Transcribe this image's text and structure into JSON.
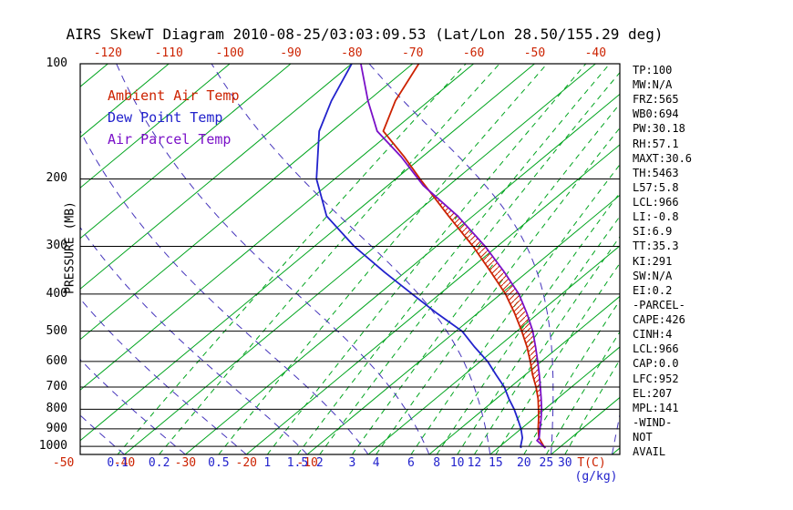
{
  "title": "AIRS SkewT Diagram 2010-08-25/03:03:09.53 (Lat/Lon 28.50/155.29 deg)",
  "legend": {
    "items": [
      {
        "label": "Ambient Air Temp",
        "color": "#cc2200"
      },
      {
        "label": "Dew Point Temp",
        "color": "#2222cc"
      },
      {
        "label": "Air Parcel Temp",
        "color": "#7a10c8"
      }
    ]
  },
  "axes": {
    "pressure_label": "PRESSURE (MB)",
    "pressure_ticks": [
      100,
      200,
      300,
      400,
      500,
      600,
      700,
      800,
      900,
      1000
    ],
    "top_temp_ticks": [
      -120,
      -110,
      -100,
      -90,
      -80,
      -70,
      -60,
      -50,
      -40
    ],
    "bottom_temp_ticks": [
      -50,
      -40,
      -30,
      -20,
      -10
    ],
    "bottom_temp_unit": "T(C)",
    "mixing_ratio_ticks": [
      0.1,
      0.2,
      0.5,
      1,
      1.5,
      2,
      3,
      4,
      6,
      8,
      10,
      12,
      15,
      20,
      25,
      30
    ],
    "mixing_ratio_unit": "(g/kg)"
  },
  "stats": [
    "TP:100",
    "MW:N/A",
    "FRZ:565",
    "WB0:694",
    "PW:30.18",
    "RH:57.1",
    "MAXT:30.6",
    "TH:5463",
    "L57:5.8",
    "LCL:966",
    "LI:-0.8",
    "SI:6.9",
    "TT:35.3",
    "KI:291",
    "SW:N/A",
    "EI:0.2",
    "-PARCEL-",
    "CAPE:426",
    "CINH:4",
    "LCL:966",
    "CAP:0.0",
    "LFC:952",
    "EL:207",
    "MPL:141",
    "-WIND-",
    "NOT",
    "AVAIL"
  ],
  "chart_data": {
    "type": "line",
    "title": "AIRS SkewT Diagram 2010-08-25/03:03:09.53 (Lat/Lon 28.50/155.29 deg)",
    "xlabel": "Temperature (C), skewed",
    "ylabel": "Pressure (mb), log scale inverted",
    "pressure_range": [
      100,
      1050
    ],
    "isotherm_range": [
      -160,
      40
    ],
    "isotherm_step": 10,
    "moist_adiabat_surface_temps": [
      -50,
      -40,
      -30,
      -20,
      -10,
      0,
      10,
      20,
      30,
      40
    ],
    "mixing_ratio_lines": [
      0.1,
      0.2,
      0.5,
      1,
      1.5,
      2,
      3,
      4,
      6,
      8,
      10,
      12,
      15,
      20,
      25,
      30
    ],
    "colors": {
      "isotherm": "#00a41e",
      "mixing_ratio": "#00a41e",
      "moist_adiabat": "#4433bb",
      "ambient": "#cc2200",
      "dew_point": "#2222cc",
      "parcel": "#7a10c8",
      "pressure_grid": "#000000",
      "hatch": "#cc2200"
    },
    "cape_region": {
      "from_mb": 950,
      "to_mb": 208
    },
    "series": [
      {
        "name": "Ambient Air Temp",
        "color": "#cc2200",
        "points": [
          [
            1010,
            27.8
          ],
          [
            1000,
            27.2
          ],
          [
            950,
            24.7
          ],
          [
            900,
            22.8
          ],
          [
            850,
            21.0
          ],
          [
            800,
            19.0
          ],
          [
            750,
            16.8
          ],
          [
            700,
            14.2
          ],
          [
            650,
            11.2
          ],
          [
            600,
            8.2
          ],
          [
            550,
            4.8
          ],
          [
            500,
            0.8
          ],
          [
            450,
            -3.8
          ],
          [
            400,
            -9.2
          ],
          [
            350,
            -16.0
          ],
          [
            300,
            -24.0
          ],
          [
            250,
            -34.0
          ],
          [
            200,
            -46.0
          ],
          [
            175,
            -53.0
          ],
          [
            150,
            -61.5
          ],
          [
            125,
            -65.5
          ],
          [
            100,
            -69.0
          ]
        ]
      },
      {
        "name": "Dew Point Temp",
        "color": "#2222cc",
        "points": [
          [
            1010,
            23.8
          ],
          [
            1000,
            23.4
          ],
          [
            950,
            22.0
          ],
          [
            900,
            20.0
          ],
          [
            850,
            17.6
          ],
          [
            800,
            15.0
          ],
          [
            750,
            12.0
          ],
          [
            700,
            9.0
          ],
          [
            650,
            5.2
          ],
          [
            600,
            1.2
          ],
          [
            550,
            -3.8
          ],
          [
            500,
            -9.0
          ],
          [
            450,
            -16.5
          ],
          [
            400,
            -24.5
          ],
          [
            350,
            -33.5
          ],
          [
            300,
            -43.5
          ],
          [
            250,
            -54.0
          ],
          [
            200,
            -63.0
          ],
          [
            150,
            -72.0
          ],
          [
            125,
            -76.0
          ],
          [
            100,
            -80.0
          ]
        ]
      },
      {
        "name": "Air Parcel Temp",
        "color": "#7a10c8",
        "points": [
          [
            1010,
            27.8
          ],
          [
            966,
            24.95
          ],
          [
            950,
            24.75
          ],
          [
            900,
            23.1
          ],
          [
            850,
            21.4
          ],
          [
            800,
            19.5
          ],
          [
            750,
            17.3
          ],
          [
            700,
            14.9
          ],
          [
            650,
            12.3
          ],
          [
            600,
            9.4
          ],
          [
            550,
            6.2
          ],
          [
            500,
            2.6
          ],
          [
            450,
            -1.8
          ],
          [
            400,
            -7.0
          ],
          [
            350,
            -13.8
          ],
          [
            300,
            -22.0
          ],
          [
            250,
            -32.5
          ],
          [
            208,
            -44.2
          ],
          [
            175,
            -53.5
          ],
          [
            150,
            -62.5
          ],
          [
            125,
            -70.0
          ],
          [
            100,
            -78.5
          ]
        ]
      }
    ]
  }
}
